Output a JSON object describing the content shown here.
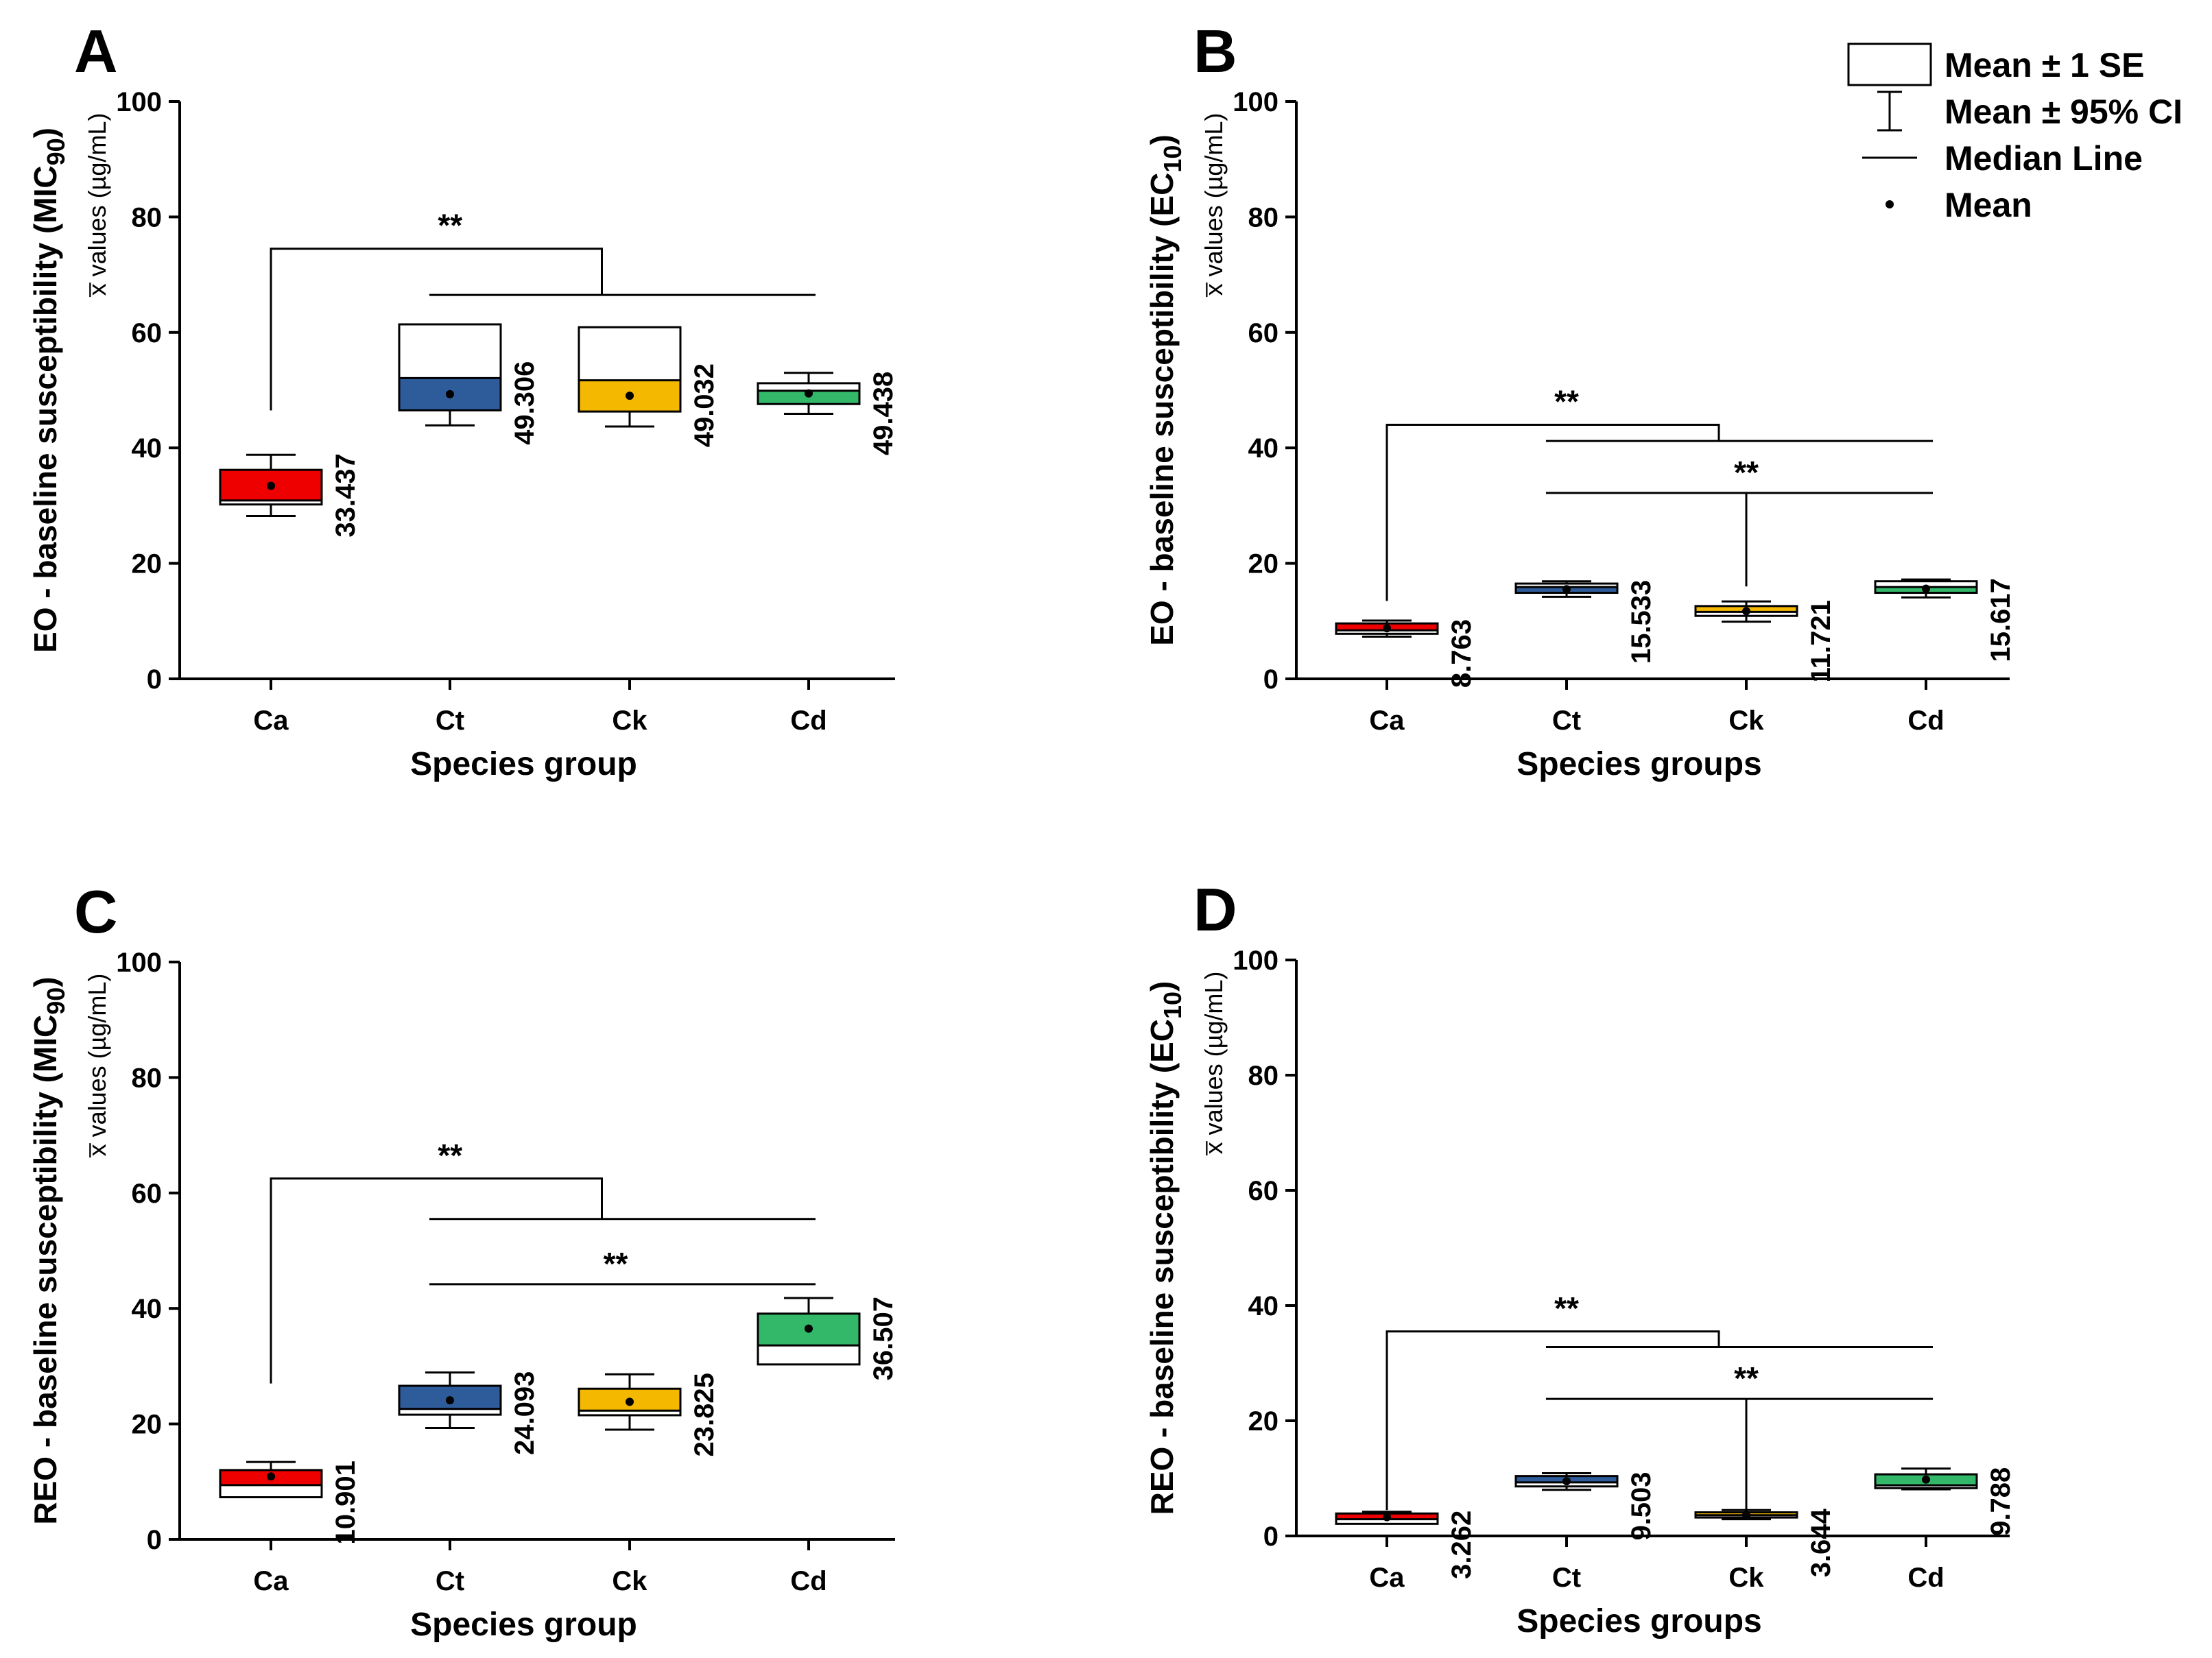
{
  "colors": {
    "Ca": "#ee0000",
    "Ct": "#2e5c9a",
    "Ck": "#f5b800",
    "Cd": "#33b86a",
    "frame": "#000000"
  },
  "legend": {
    "placement": "top-right",
    "items": [
      {
        "icon": "box-icon",
        "label": "Mean ± 1 SE"
      },
      {
        "icon": "whisker-icon",
        "label": "Mean ± 95% CI"
      },
      {
        "icon": "median-line-icon",
        "label": "Median Line"
      },
      {
        "icon": "mean-dot-icon",
        "label": "Mean"
      }
    ]
  },
  "chart_data": [
    {
      "panel": "A",
      "type": "box",
      "ylabel_main": "EO - baseline susceptibility (MIC90)",
      "ylabel_base": "EO - baseline susceptibility (MIC",
      "ylabel_subscript": "90",
      "ylabel_tail": ")",
      "ylabel_sub": "x̅ values (µg/mL)",
      "xlabel": "Species group",
      "ylim": [
        0,
        100
      ],
      "yticks": [
        0,
        20,
        40,
        60,
        80,
        100
      ],
      "categories": [
        "Ca",
        "Ct",
        "Ck",
        "Cd"
      ],
      "boxes": [
        {
          "cat": "Ca",
          "mean": 33.437,
          "se_low": 30.2,
          "se_high": 36.2,
          "median": 30.9,
          "ci_low": 28.2,
          "ci_high": 38.8,
          "label": "33.437"
        },
        {
          "cat": "Ct",
          "mean": 49.306,
          "se_low": 46.5,
          "se_high": 61.4,
          "median": 52.1,
          "ci_low": 43.9,
          "ci_high": 54.8,
          "label": "49.306"
        },
        {
          "cat": "Ck",
          "mean": 49.032,
          "se_low": 46.3,
          "se_high": 60.9,
          "median": 51.7,
          "ci_low": 43.7,
          "ci_high": 54.4,
          "label": "49.032"
        },
        {
          "cat": "Cd",
          "mean": 49.438,
          "se_low": 47.6,
          "se_high": 51.2,
          "median": 49.9,
          "ci_low": 45.9,
          "ci_high": 53.0,
          "label": "49.438"
        }
      ],
      "significance": [
        {
          "label": "**",
          "from": "Ca",
          "from_y": 46.5,
          "top_y": 74.5,
          "group": [
            "Ct",
            "Cd"
          ],
          "group_y": 66.5
        }
      ]
    },
    {
      "panel": "B",
      "type": "box",
      "ylabel_main": "EO - baseline susceptibility (EC10)",
      "ylabel_base": "EO - baseline susceptibility (EC",
      "ylabel_subscript": "10",
      "ylabel_tail": ")",
      "ylabel_sub": "x̅ values (µg/mL)",
      "xlabel": "Species groups",
      "ylim": [
        0,
        100
      ],
      "yticks": [
        0,
        20,
        40,
        60,
        80,
        100
      ],
      "categories": [
        "Ca",
        "Ct",
        "Ck",
        "Cd"
      ],
      "boxes": [
        {
          "cat": "Ca",
          "mean": 8.763,
          "se_low": 7.8,
          "se_high": 9.6,
          "median": 8.4,
          "ci_low": 7.3,
          "ci_high": 10.1,
          "label": "8.763"
        },
        {
          "cat": "Ct",
          "mean": 15.533,
          "se_low": 14.9,
          "se_high": 16.5,
          "median": 15.9,
          "ci_low": 14.2,
          "ci_high": 16.9,
          "label": "15.533"
        },
        {
          "cat": "Ck",
          "mean": 11.721,
          "se_low": 10.9,
          "se_high": 12.6,
          "median": 11.6,
          "ci_low": 9.9,
          "ci_high": 13.4,
          "label": "11.721"
        },
        {
          "cat": "Cd",
          "mean": 15.617,
          "se_low": 14.9,
          "se_high": 16.9,
          "median": 15.9,
          "ci_low": 14.1,
          "ci_high": 17.2,
          "label": "15.617"
        }
      ],
      "significance": [
        {
          "label": "**",
          "from": "Ca",
          "from_y": 13.5,
          "top_y": 44.0,
          "group": [
            "Ct",
            "Cd"
          ],
          "group_y": 41.2
        },
        {
          "label": "**",
          "from": "Ck",
          "from_y": 16.0,
          "top_y": 32.2,
          "group": [
            "Ct",
            "Cd"
          ],
          "group_y": 32.2
        }
      ]
    },
    {
      "panel": "C",
      "type": "box",
      "ylabel_main": "REO - baseline susceptibility (MIC90)",
      "ylabel_base": "REO - baseline susceptibility (MIC",
      "ylabel_subscript": "90",
      "ylabel_tail": ")",
      "ylabel_sub": "x̅ values (µg/mL)",
      "xlabel": "Species group",
      "ylim": [
        0,
        100
      ],
      "yticks": [
        0,
        20,
        40,
        60,
        80,
        100
      ],
      "categories": [
        "Ca",
        "Ct",
        "Ck",
        "Cd"
      ],
      "boxes": [
        {
          "cat": "Ca",
          "mean": 10.901,
          "se_low": 7.3,
          "se_high": 12.0,
          "median": 9.4,
          "ci_low": 8.2,
          "ci_high": 13.4,
          "label": "10.901"
        },
        {
          "cat": "Ct",
          "mean": 24.093,
          "se_low": 21.6,
          "se_high": 26.6,
          "median": 22.6,
          "ci_low": 19.3,
          "ci_high": 28.9,
          "label": "24.093"
        },
        {
          "cat": "Ck",
          "mean": 23.825,
          "se_low": 21.5,
          "se_high": 26.1,
          "median": 22.3,
          "ci_low": 19.0,
          "ci_high": 28.6,
          "label": "23.825"
        },
        {
          "cat": "Cd",
          "mean": 36.507,
          "se_low": 30.3,
          "se_high": 39.1,
          "median": 33.6,
          "ci_low": 31.2,
          "ci_high": 41.8,
          "label": "36.507"
        }
      ],
      "significance": [
        {
          "label": "**",
          "from": "Ca",
          "from_y": 27.0,
          "top_y": 62.5,
          "group": [
            "Ct",
            "Cd"
          ],
          "group_y": 55.5
        },
        {
          "label": "**",
          "from": null,
          "from_y": null,
          "top_y": 44.2,
          "group": [
            "Ct",
            "Cd"
          ],
          "group_y": 44.2
        }
      ]
    },
    {
      "panel": "D",
      "type": "box",
      "ylabel_main": "REO - baseline susceptibility (EC10)",
      "ylabel_base": "REO - baseline susceptibility (EC",
      "ylabel_subscript": "10",
      "ylabel_tail": ")",
      "ylabel_sub": "x̅ values (µg/mL)",
      "xlabel": "Species groups",
      "ylim": [
        0,
        100
      ],
      "yticks": [
        0,
        20,
        40,
        60,
        80,
        100
      ],
      "categories": [
        "Ca",
        "Ct",
        "Ck",
        "Cd"
      ],
      "boxes": [
        {
          "cat": "Ca",
          "mean": 3.262,
          "se_low": 2.1,
          "se_high": 3.9,
          "median": 2.9,
          "ci_low": 2.4,
          "ci_high": 4.2,
          "label": "3.262"
        },
        {
          "cat": "Ct",
          "mean": 9.503,
          "se_low": 8.6,
          "se_high": 10.4,
          "median": 9.3,
          "ci_low": 8.0,
          "ci_high": 10.9,
          "label": "9.503"
        },
        {
          "cat": "Ck",
          "mean": 3.644,
          "se_low": 3.2,
          "se_high": 4.1,
          "median": 3.6,
          "ci_low": 2.9,
          "ci_high": 4.5,
          "label": "3.644"
        },
        {
          "cat": "Cd",
          "mean": 9.788,
          "se_low": 8.3,
          "se_high": 10.7,
          "median": 8.8,
          "ci_low": 8.1,
          "ci_high": 11.7,
          "label": "9.788"
        }
      ],
      "significance": [
        {
          "label": "**",
          "from": "Ca",
          "from_y": 4.5,
          "top_y": 35.5,
          "group": [
            "Ct",
            "Cd"
          ],
          "group_y": 32.8
        },
        {
          "label": "**",
          "from": "Ck",
          "from_y": 4.5,
          "top_y": 23.8,
          "group": [
            "Ct",
            "Cd"
          ],
          "group_y": 23.8
        }
      ]
    }
  ]
}
